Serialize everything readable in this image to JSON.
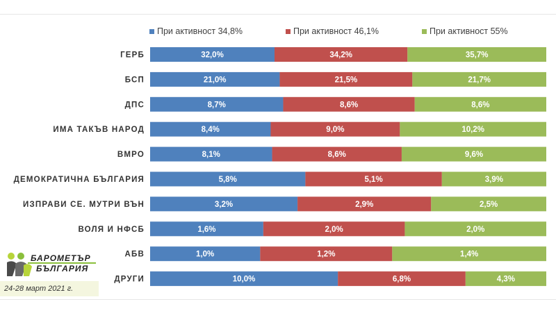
{
  "chart_data": {
    "type": "bar",
    "orientation": "horizontal",
    "stacked": true,
    "categories": [
      "ГЕРБ",
      "БСП",
      "ДПС",
      "ИМА ТАКЪВ НАРОД",
      "ВМРО",
      "ДЕМОКРАТИЧНА БЪЛГАРИЯ",
      "ИЗПРАВИ СЕ. МУТРИ ВЪН",
      "ВОЛЯ И НФСБ",
      "АБВ",
      "ДРУГИ"
    ],
    "series": [
      {
        "name": "При активност 34,8%",
        "color": "#4f81bd",
        "values": [
          32.0,
          21.0,
          8.7,
          8.4,
          8.1,
          5.8,
          3.2,
          1.6,
          1.0,
          10.0
        ],
        "labels": [
          "32,0%",
          "21,0%",
          "8,7%",
          "8,4%",
          "8,1%",
          "5,8%",
          "3,2%",
          "1,6%",
          "1,0%",
          "10,0%"
        ]
      },
      {
        "name": "При активност 46,1%",
        "color": "#c0504d",
        "values": [
          34.2,
          21.5,
          8.6,
          9.0,
          8.6,
          5.1,
          2.9,
          2.0,
          1.2,
          6.8
        ],
        "labels": [
          "34,2%",
          "21,5%",
          "8,6%",
          "9,0%",
          "8,6%",
          "5,1%",
          "2,9%",
          "2,0%",
          "1,2%",
          "6,8%"
        ]
      },
      {
        "name": "При активност 55%",
        "color": "#9bbb59",
        "values": [
          35.7,
          21.7,
          8.6,
          10.2,
          9.6,
          3.9,
          2.5,
          2.0,
          1.4,
          4.3
        ],
        "labels": [
          "35,7%",
          "21,7%",
          "8,6%",
          "10,2%",
          "9,6%",
          "3,9%",
          "2,5%",
          "2,0%",
          "1,4%",
          "4,3%"
        ]
      }
    ],
    "normalized": true,
    "legend_position": "top"
  },
  "logo": {
    "line1": "БАРОМЕТЪР",
    "line2": "БЪЛГАРИЯ",
    "date": "24-28 март 2021 г."
  }
}
